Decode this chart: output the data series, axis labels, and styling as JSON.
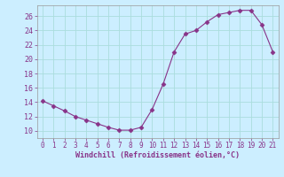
{
  "x": [
    0,
    1,
    2,
    3,
    4,
    5,
    6,
    7,
    8,
    9,
    10,
    11,
    12,
    13,
    14,
    15,
    16,
    17,
    18,
    19,
    20,
    21
  ],
  "y": [
    14.2,
    13.5,
    12.8,
    12.0,
    11.5,
    11.0,
    10.5,
    10.1,
    10.1,
    10.5,
    13.0,
    16.5,
    21.0,
    23.5,
    24.0,
    25.2,
    26.2,
    26.5,
    26.8,
    26.8,
    24.8,
    21.0
  ],
  "line_color": "#883388",
  "marker": "D",
  "marker_size": 2.5,
  "bg_color": "#cceeff",
  "grid_color": "#aadddd",
  "xlabel": "Windchill (Refroidissement éolien,°C)",
  "xlabel_color": "#883388",
  "tick_color": "#883388",
  "ylim": [
    9.0,
    27.5
  ],
  "yticks": [
    10,
    12,
    14,
    16,
    18,
    20,
    22,
    24,
    26
  ],
  "xlim": [
    -0.5,
    21.5
  ],
  "xticks": [
    0,
    1,
    2,
    3,
    4,
    5,
    6,
    7,
    8,
    9,
    10,
    11,
    12,
    13,
    14,
    15,
    16,
    17,
    18,
    19,
    20,
    21
  ]
}
